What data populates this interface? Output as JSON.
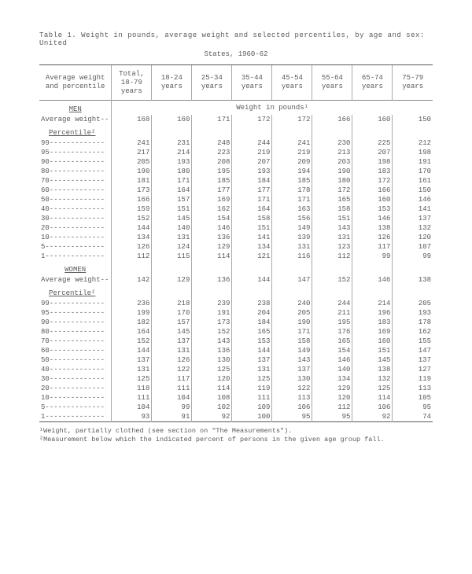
{
  "caption_line1": "Table 1.  Weight in  pounds, average  weight and  selected percentiles,  by age  and sex:  United",
  "caption_line2": "States, 1960-62",
  "header": {
    "stub": "Average weight\nand percentile",
    "cols": [
      "Total,\n18-79\nyears",
      "18-24\nyears",
      "25-34\nyears",
      "35-44\nyears",
      "45-54\nyears",
      "55-64\nyears",
      "65-74\nyears",
      "75-79\nyears"
    ]
  },
  "subheader": "Weight in pounds¹",
  "sections": [
    {
      "title": "MEN",
      "avg_label": "Average weight--",
      "avg": [
        168,
        160,
        171,
        172,
        172,
        166,
        160,
        150
      ],
      "pct_title": "Percentile²",
      "rows": [
        {
          "l": "99-------------",
          "v": [
            241,
            231,
            248,
            244,
            241,
            230,
            225,
            212
          ]
        },
        {
          "l": "95-------------",
          "v": [
            217,
            214,
            223,
            219,
            219,
            213,
            207,
            198
          ]
        },
        {
          "l": "90-------------",
          "v": [
            205,
            193,
            208,
            207,
            209,
            203,
            198,
            191
          ]
        },
        {
          "l": "80-------------",
          "v": [
            190,
            180,
            195,
            193,
            194,
            190,
            183,
            170
          ]
        },
        {
          "l": "70-------------",
          "v": [
            181,
            171,
            185,
            184,
            185,
            180,
            172,
            161
          ]
        },
        {
          "l": "60-------------",
          "v": [
            173,
            164,
            177,
            177,
            178,
            172,
            166,
            150
          ]
        },
        {
          "l": "50-------------",
          "v": [
            166,
            157,
            169,
            171,
            171,
            165,
            160,
            146
          ]
        },
        {
          "l": "40-------------",
          "v": [
            159,
            151,
            162,
            164,
            163,
            158,
            153,
            141
          ]
        },
        {
          "l": "30-------------",
          "v": [
            152,
            145,
            154,
            158,
            156,
            151,
            146,
            137
          ]
        },
        {
          "l": "20-------------",
          "v": [
            144,
            140,
            146,
            151,
            149,
            143,
            138,
            132
          ]
        },
        {
          "l": "10-------------",
          "v": [
            134,
            131,
            136,
            141,
            139,
            131,
            126,
            120
          ]
        },
        {
          "l": "5--------------",
          "v": [
            126,
            124,
            129,
            134,
            131,
            123,
            117,
            107
          ]
        },
        {
          "l": "1--------------",
          "v": [
            112,
            115,
            114,
            121,
            116,
            112,
            99,
            99
          ]
        }
      ]
    },
    {
      "title": "WOMEN",
      "avg_label": "Average weight--",
      "avg": [
        142,
        129,
        136,
        144,
        147,
        152,
        146,
        138
      ],
      "pct_title": "Percentile²",
      "rows": [
        {
          "l": "99-------------",
          "v": [
            236,
            218,
            239,
            238,
            240,
            244,
            214,
            205
          ]
        },
        {
          "l": "95-------------",
          "v": [
            199,
            170,
            191,
            204,
            205,
            211,
            196,
            193
          ]
        },
        {
          "l": "90-------------",
          "v": [
            182,
            157,
            173,
            184,
            190,
            195,
            183,
            178
          ]
        },
        {
          "l": "80-------------",
          "v": [
            164,
            145,
            152,
            165,
            171,
            176,
            169,
            162
          ]
        },
        {
          "l": "70-------------",
          "v": [
            152,
            137,
            143,
            153,
            158,
            165,
            160,
            155
          ]
        },
        {
          "l": "60-------------",
          "v": [
            144,
            131,
            136,
            144,
            149,
            154,
            151,
            147
          ]
        },
        {
          "l": "50-------------",
          "v": [
            137,
            126,
            130,
            137,
            143,
            146,
            145,
            137
          ]
        },
        {
          "l": "40-------------",
          "v": [
            131,
            122,
            125,
            131,
            137,
            140,
            138,
            127
          ]
        },
        {
          "l": "30-------------",
          "v": [
            125,
            117,
            120,
            125,
            130,
            134,
            132,
            119
          ]
        },
        {
          "l": "20-------------",
          "v": [
            118,
            111,
            114,
            119,
            122,
            129,
            125,
            113
          ]
        },
        {
          "l": "10-------------",
          "v": [
            111,
            104,
            108,
            111,
            113,
            120,
            114,
            105
          ]
        },
        {
          "l": "5--------------",
          "v": [
            104,
            99,
            102,
            109,
            106,
            112,
            106,
            95
          ]
        },
        {
          "l": "1--------------",
          "v": [
            93,
            91,
            92,
            100,
            95,
            95,
            92,
            74
          ]
        }
      ]
    }
  ],
  "footnotes": [
    "¹Weight, partially clothed (see section on \"The Measurements\").",
    "²Measurement below which the indicated percent of persons in the given age group fall."
  ],
  "style": {
    "font_family": "Courier New",
    "font_size_pt": 9,
    "text_color": "#5a5a5a",
    "background": "#ffffff",
    "rule_color_thick": "#5a5a5a",
    "rule_color_thin": "#888888",
    "col_sep_color": "#aaaaaa"
  }
}
